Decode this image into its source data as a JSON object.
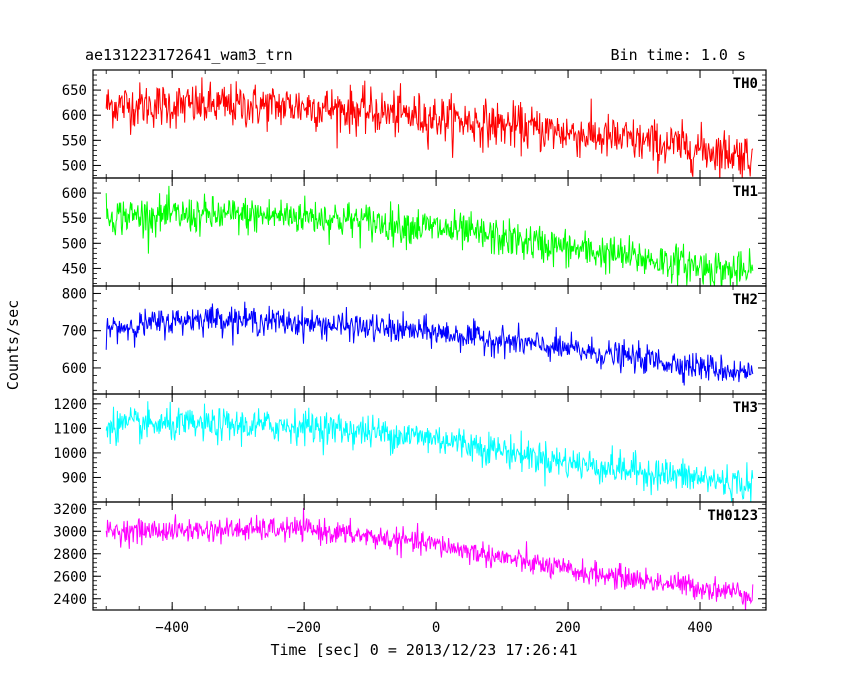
{
  "header": {
    "title": "ae131223172641_wam3_trn",
    "bin_time": "Bin time: 1.0 s"
  },
  "chart_data": {
    "type": "line",
    "xlabel": "Time [sec] 0 = 2013/12/23 17:26:41",
    "ylabel": "Counts/sec",
    "xlim": [
      -520,
      500
    ],
    "x_ticks": [
      -400,
      -200,
      0,
      200,
      400
    ],
    "x_range_data": [
      -500,
      480
    ],
    "bin_time_s": 1.0,
    "panels": [
      {
        "name": "TH0",
        "color": "#ff0000",
        "ylim": [
          475,
          690
        ],
        "yticks": [
          500,
          550,
          600,
          650
        ],
        "trend": [
          [
            -500,
            620
          ],
          [
            -200,
            618
          ],
          [
            0,
            595
          ],
          [
            200,
            565
          ],
          [
            480,
            520
          ]
        ],
        "noise": 30
      },
      {
        "name": "TH1",
        "color": "#00ff00",
        "ylim": [
          415,
          630
        ],
        "yticks": [
          450,
          500,
          550,
          600
        ],
        "trend": [
          [
            -500,
            555
          ],
          [
            -200,
            555
          ],
          [
            0,
            530
          ],
          [
            200,
            490
          ],
          [
            480,
            440
          ]
        ],
        "noise": 25
      },
      {
        "name": "TH2",
        "color": "#0000ff",
        "ylim": [
          530,
          820
        ],
        "yticks": [
          600,
          700,
          800
        ],
        "trend": [
          [
            -500,
            705
          ],
          [
            -350,
            735
          ],
          [
            -200,
            720
          ],
          [
            0,
            695
          ],
          [
            200,
            650
          ],
          [
            480,
            585
          ]
        ],
        "noise": 25
      },
      {
        "name": "TH3",
        "color": "#00ffff",
        "ylim": [
          800,
          1240
        ],
        "yticks": [
          900,
          1000,
          1100,
          1200
        ],
        "trend": [
          [
            -500,
            1115
          ],
          [
            -200,
            1110
          ],
          [
            0,
            1060
          ],
          [
            200,
            960
          ],
          [
            480,
            870
          ]
        ],
        "noise": 45
      },
      {
        "name": "TH0123",
        "color": "#ff00ff",
        "ylim": [
          2300,
          3260
        ],
        "yticks": [
          2400,
          2600,
          2800,
          3000,
          3200
        ],
        "trend": [
          [
            -500,
            3000
          ],
          [
            -200,
            3020
          ],
          [
            0,
            2880
          ],
          [
            200,
            2650
          ],
          [
            480,
            2440
          ]
        ],
        "noise": 70
      }
    ]
  }
}
